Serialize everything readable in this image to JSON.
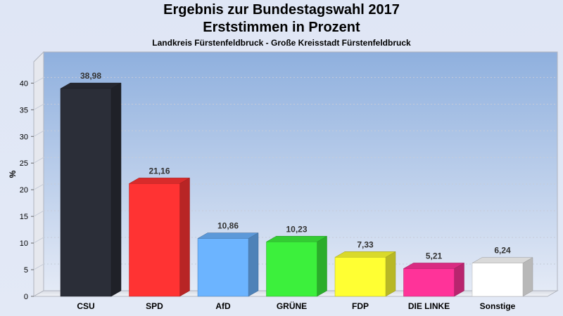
{
  "chart_data": {
    "type": "bar",
    "title": "Ergebnis zur Bundestagswahl 2017",
    "subtitle": "Erststimmen in Prozent",
    "caption": "Landkreis Fürstenfeldbruck - Große Kreisstadt Fürstenfeldbruck",
    "xlabel": "",
    "ylabel": "%",
    "ylim": [
      0,
      45
    ],
    "yticks": [
      0,
      5,
      10,
      15,
      20,
      25,
      30,
      35,
      40
    ],
    "categories": [
      "CSU",
      "SPD",
      "AfD",
      "GRÜNE",
      "FDP",
      "DIE LINKE",
      "Sonstige"
    ],
    "values": [
      38.98,
      21.16,
      10.86,
      10.23,
      7.33,
      5.21,
      6.24
    ],
    "value_labels": [
      "38,98",
      "21,16",
      "10,86",
      "10,23",
      "7,33",
      "5,21",
      "6,24"
    ],
    "colors": [
      "#2b2e38",
      "#ff3333",
      "#6cb4ff",
      "#3cf03c",
      "#ffff33",
      "#ff3399",
      "#ffffff"
    ],
    "grid": true,
    "legend": "none"
  }
}
